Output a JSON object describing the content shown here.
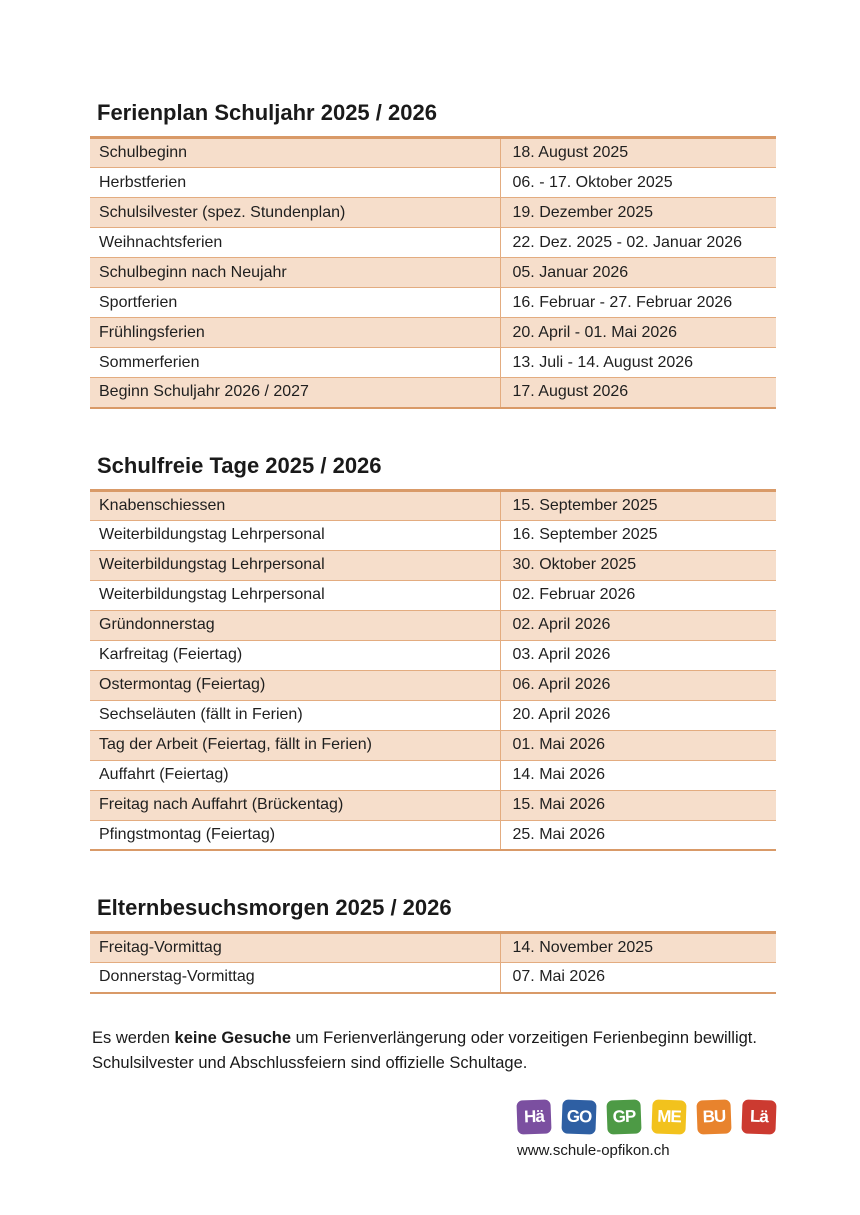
{
  "document": {
    "sections": [
      {
        "id": "ferienplan",
        "title": "Ferienplan Schuljahr 2025 / 2026",
        "rows": [
          {
            "label": "Schulbeginn",
            "date": "18. August 2025"
          },
          {
            "label": "Herbstferien",
            "date": "06. - 17. Oktober 2025"
          },
          {
            "label": "Schulsilvester (spez. Stundenplan)",
            "date": "19. Dezember 2025"
          },
          {
            "label": "Weihnachtsferien",
            "date": "22. Dez. 2025 - 02. Januar 2026"
          },
          {
            "label": "Schulbeginn nach Neujahr",
            "date": "05. Januar 2026"
          },
          {
            "label": "Sportferien",
            "date": "16. Februar - 27. Februar 2026"
          },
          {
            "label": "Frühlingsferien",
            "date": "20. April - 01. Mai 2026"
          },
          {
            "label": "Sommerferien",
            "date": "13. Juli - 14. August 2026"
          },
          {
            "label": "Beginn Schuljahr 2026 / 2027",
            "date": "17. August 2026"
          }
        ]
      },
      {
        "id": "schulfreie-tage",
        "title": "Schulfreie Tage 2025 / 2026",
        "rows": [
          {
            "label": "Knabenschiessen",
            "date": "15. September 2025"
          },
          {
            "label": "Weiterbildungstag Lehrpersonal",
            "date": "16. September 2025"
          },
          {
            "label": "Weiterbildungstag Lehrpersonal",
            "date": "30. Oktober 2025"
          },
          {
            "label": "Weiterbildungstag Lehrpersonal",
            "date": "02. Februar 2026"
          },
          {
            "label": "Gründonnerstag",
            "date": "02. April 2026"
          },
          {
            "label": "Karfreitag (Feiertag)",
            "date": "03. April 2026"
          },
          {
            "label": "Ostermontag (Feiertag)",
            "date": "06. April 2026"
          },
          {
            "label": "Sechseläuten (fällt in Ferien)",
            "date": "20. April 2026"
          },
          {
            "label": "Tag der Arbeit (Feiertag, fällt in Ferien)",
            "date": "01. Mai 2026"
          },
          {
            "label": "Auffahrt (Feiertag)",
            "date": "14. Mai 2026"
          },
          {
            "label": "Freitag nach Auffahrt (Brückentag)",
            "date": "15. Mai 2026"
          },
          {
            "label": "Pfingstmontag (Feiertag)",
            "date": "25. Mai 2026"
          }
        ]
      },
      {
        "id": "elternbesuchsmorgen",
        "title": "Elternbesuchsmorgen 2025 / 2026",
        "rows": [
          {
            "label": "Freitag-Vormittag",
            "date": "14. November 2025"
          },
          {
            "label": "Donnerstag-Vormittag",
            "date": "07. Mai 2026"
          }
        ]
      }
    ],
    "footer": {
      "line1_prefix": "Es werden ",
      "line1_bold": "keine Gesuche",
      "line1_suffix": " um Ferienverlängerung oder vorzeitigen Ferienbeginn bewilligt.",
      "line2": "Schulsilvester und Abschlussfeiern sind offizielle Schultage."
    },
    "logo": {
      "tiles": [
        {
          "name": "tile-hae",
          "label": "Hä",
          "color": "#7b4fa0"
        },
        {
          "name": "tile-go",
          "label": "GO",
          "color": "#2e5fa3"
        },
        {
          "name": "tile-gp",
          "label": "GP",
          "color": "#4d9a45"
        },
        {
          "name": "tile-me",
          "label": "ME",
          "color": "#f2c21d"
        },
        {
          "name": "tile-bu",
          "label": "BU",
          "color": "#e8832d"
        },
        {
          "name": "tile-lae",
          "label": "Lä",
          "color": "#cc3a30"
        }
      ],
      "url": "www.schule-opfikon.ch"
    },
    "colors": {
      "row_fill": "#f6decb",
      "row_border": "#e3ac80",
      "table_frame": "#d99a68",
      "text": "#1a1a1a"
    }
  }
}
